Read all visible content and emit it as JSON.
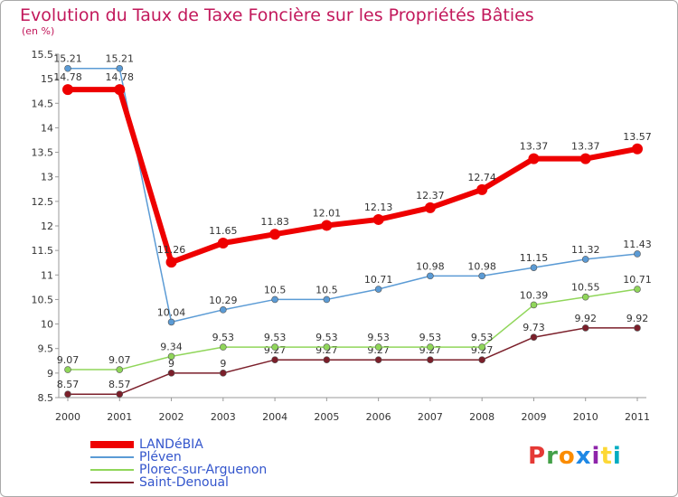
{
  "title": "Evolution du Taux de Taxe Foncière sur les Propriétés Bâties",
  "unit_label": "(en %)",
  "logo": {
    "text": "Proxiti",
    "colors": [
      "#e53935",
      "#43a047",
      "#fb8c00",
      "#1e88e5",
      "#8e24aa",
      "#fdd835",
      "#00acc1"
    ]
  },
  "chart_data": {
    "type": "line",
    "x": [
      "2000",
      "2001",
      "2002",
      "2003",
      "2004",
      "2005",
      "2006",
      "2007",
      "2008",
      "2009",
      "2010",
      "2011"
    ],
    "ylim": [
      8.5,
      15.5
    ],
    "yticks": [
      "8.5",
      "9",
      "9.5",
      "10",
      "10.5",
      "11",
      "11.5",
      "12",
      "12.5",
      "13",
      "13.5",
      "14",
      "14.5",
      "15",
      "15.5"
    ],
    "grid": false,
    "legend_position": "bottom-left",
    "series": [
      {
        "name": "Saint-Denoual",
        "color": "#7b1f2a",
        "values": [
          8.57,
          8.57,
          9,
          9,
          9.27,
          9.27,
          9.27,
          9.27,
          9.27,
          9.73,
          9.92,
          9.92
        ],
        "labels": [
          "8.57",
          "8.57",
          "9",
          "9",
          "9.27",
          "9.27",
          "9.27",
          "9.27",
          "9.27",
          "9.73",
          "9.92",
          "9.92"
        ]
      },
      {
        "name": "Plorec-sur-Arguenon",
        "color": "#90d65a",
        "values": [
          9.07,
          9.07,
          9.34,
          9.53,
          9.53,
          9.53,
          9.53,
          9.53,
          9.53,
          10.39,
          10.55,
          10.71
        ],
        "labels": [
          "9.07",
          "9.07",
          "9.34",
          "9.53",
          "9.53",
          "9.53",
          "9.53",
          "9.53",
          "9.53",
          "10.39",
          "10.55",
          "10.71"
        ]
      },
      {
        "name": "Pléven",
        "color": "#5b9bd5",
        "values": [
          15.21,
          15.21,
          10.04,
          10.29,
          10.5,
          10.5,
          10.71,
          10.98,
          10.98,
          11.15,
          11.32,
          11.43
        ],
        "labels": [
          "15.21",
          "15.21",
          "10.04",
          "10.29",
          "10.5",
          "10.5",
          "10.71",
          "10.98",
          "10.98",
          "11.15",
          "11.32",
          "11.43"
        ]
      },
      {
        "name": "LANDéBIA",
        "color": "#ee0000",
        "values": [
          14.78,
          14.78,
          11.26,
          11.65,
          11.83,
          12.01,
          12.13,
          12.37,
          12.74,
          13.37,
          13.37,
          13.57
        ],
        "labels": [
          "14.78",
          "14.78",
          "11.26",
          "11.65",
          "11.83",
          "12.01",
          "12.13",
          "12.37",
          "12.74",
          "13.37",
          "13.37",
          "13.57"
        ]
      }
    ],
    "legend_order": [
      "LANDéBIA",
      "Pléven",
      "Plorec-sur-Arguenon",
      "Saint-Denoual"
    ]
  }
}
